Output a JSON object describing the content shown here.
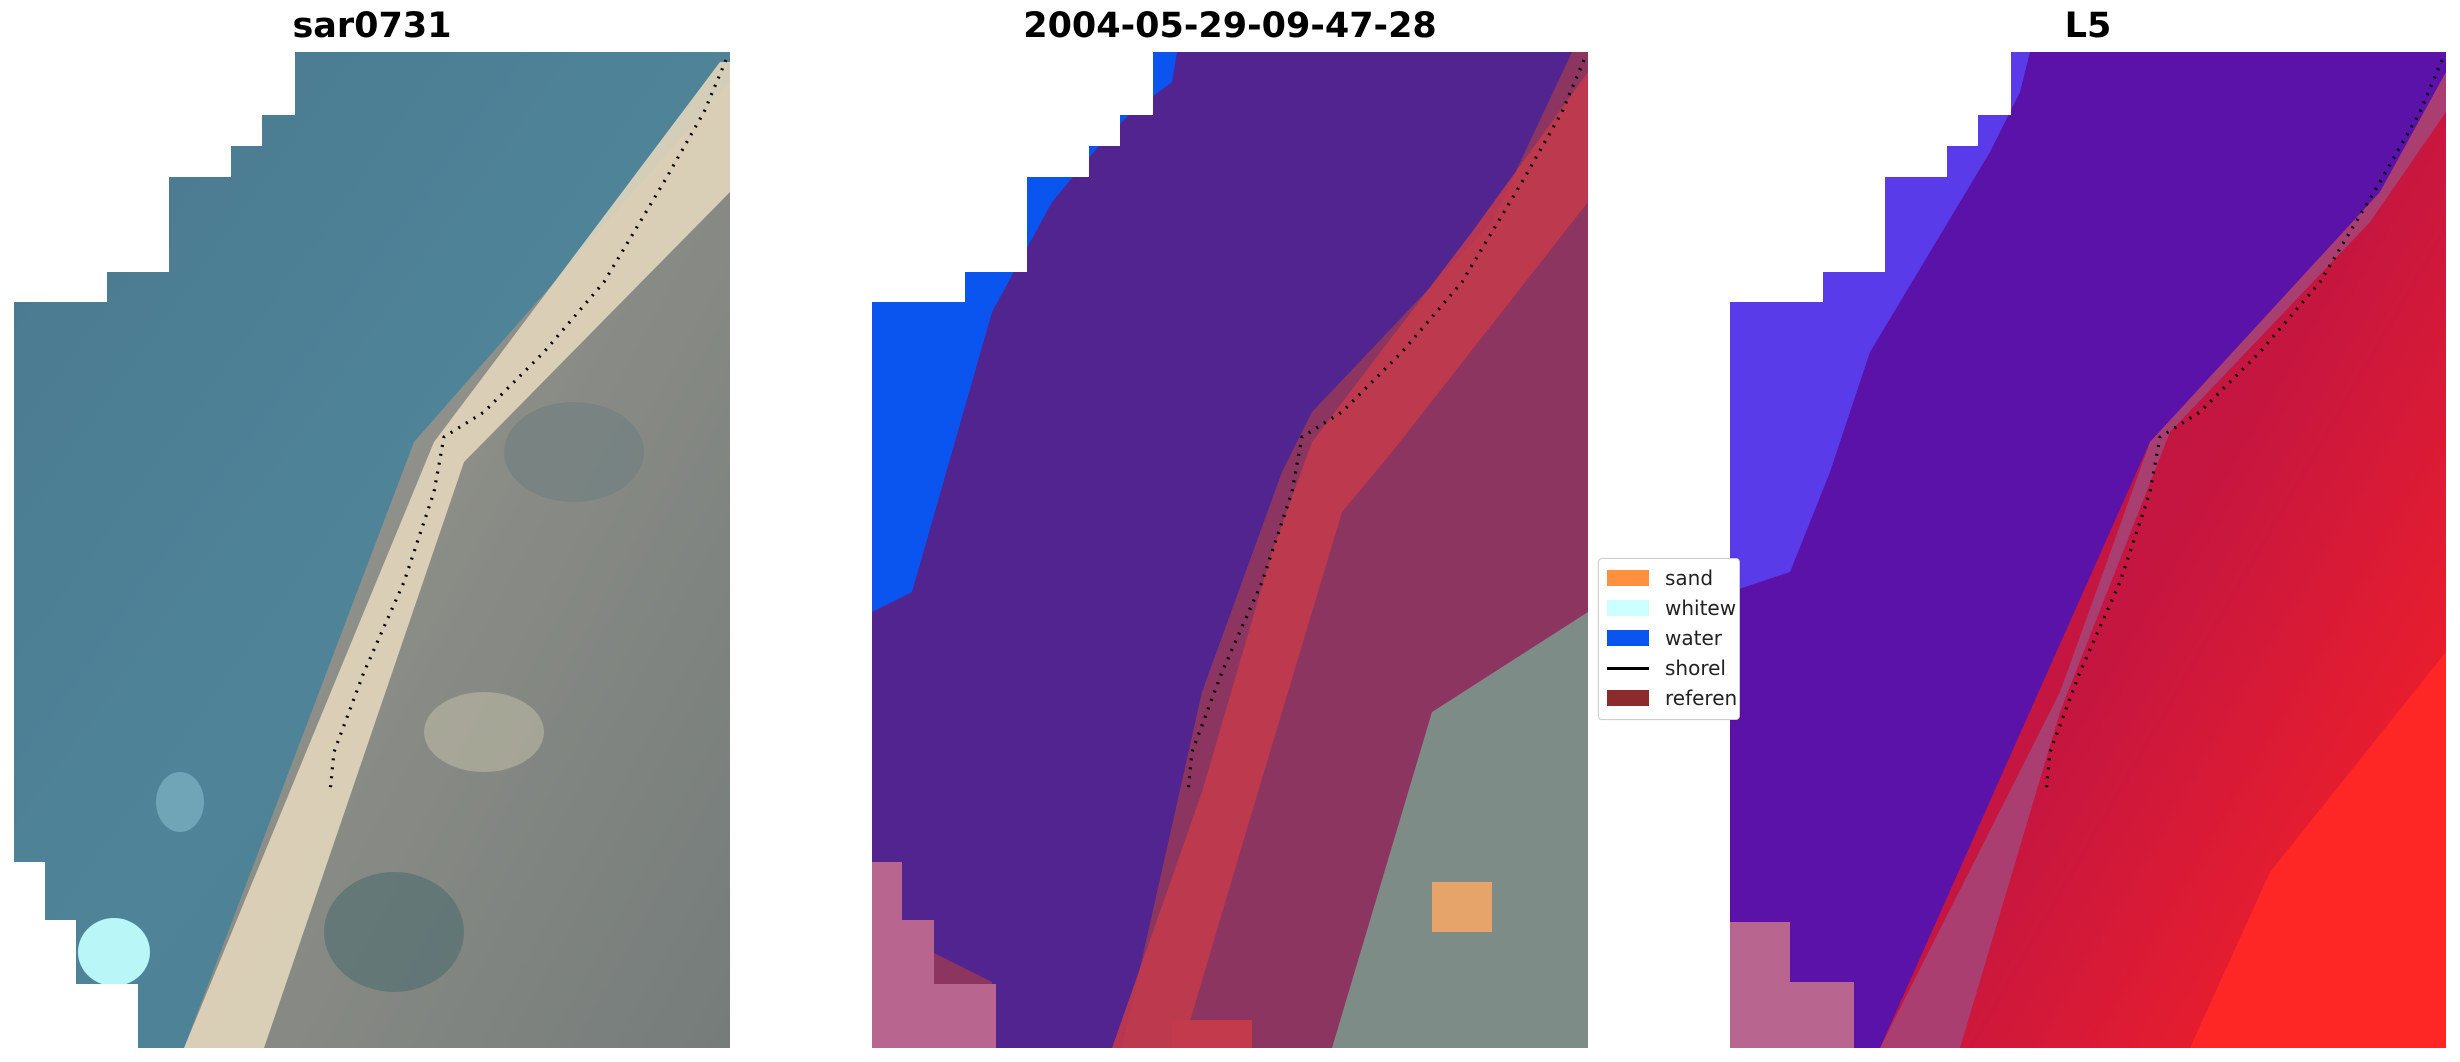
{
  "panels": [
    {
      "title": "sar0731"
    },
    {
      "title": "2004-05-29-09-47-28"
    },
    {
      "title": "L5"
    }
  ],
  "legend": {
    "items": [
      {
        "label": "sand",
        "color": "#ff9040",
        "kind": "patch"
      },
      {
        "label": "whitew",
        "color": "#ccffff",
        "kind": "patch"
      },
      {
        "label": "water",
        "color": "#0a55f0",
        "kind": "patch"
      },
      {
        "label": "shorel",
        "color": "#000000",
        "kind": "line"
      },
      {
        "label": "referen",
        "color": "#8b2b2b",
        "kind": "patch"
      }
    ]
  },
  "colors": {
    "sea": "#4d8097",
    "land": "#8c8f8a",
    "beach": "#e7dcc0",
    "classified_water": "#52248f",
    "classified_land": "#8c3560",
    "sand_strip": "#c23a4c",
    "uncovered_water": "#0a55f0",
    "mask": "#b8658f",
    "index_water": "#5a12a8",
    "index_land": "#c51640"
  }
}
